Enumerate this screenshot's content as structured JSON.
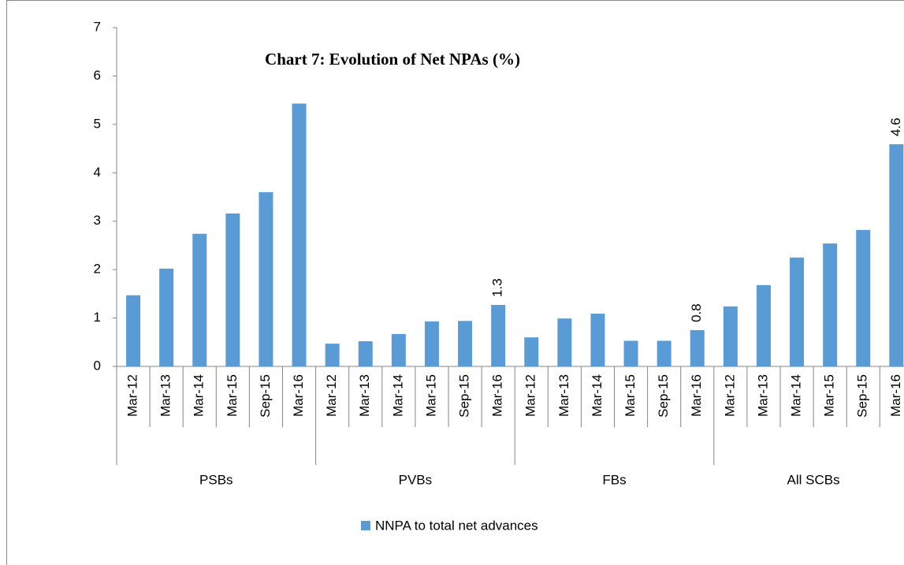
{
  "chart_data": {
    "type": "bar",
    "title": "Chart 7: Evolution of Net NPAs (%)",
    "legend": "NNPA to total net advances",
    "color": "#5b9bd5",
    "ylim": [
      0,
      7
    ],
    "yticks": [
      0,
      1,
      2,
      3,
      4,
      5,
      6,
      7
    ],
    "groups": [
      {
        "label": "PSBs",
        "categories": [
          "Mar-12",
          "Mar-13",
          "Mar-14",
          "Mar-15",
          "Sep-15",
          "Mar-16"
        ],
        "values": [
          1.47,
          2.02,
          2.74,
          3.16,
          3.6,
          5.43
        ],
        "value_labels": [
          null,
          null,
          null,
          null,
          null,
          null
        ]
      },
      {
        "label": "PVBs",
        "categories": [
          "Mar-12",
          "Mar-13",
          "Mar-14",
          "Mar-15",
          "Sep-15",
          "Mar-16"
        ],
        "values": [
          0.47,
          0.52,
          0.67,
          0.93,
          0.94,
          1.27
        ],
        "value_labels": [
          null,
          null,
          null,
          null,
          null,
          "1.3"
        ]
      },
      {
        "label": "FBs",
        "categories": [
          "Mar-12",
          "Mar-13",
          "Mar-14",
          "Mar-15",
          "Sep-15",
          "Mar-16"
        ],
        "values": [
          0.6,
          0.99,
          1.09,
          0.53,
          0.53,
          0.75
        ],
        "value_labels": [
          null,
          null,
          null,
          null,
          null,
          "0.8"
        ]
      },
      {
        "label": "All SCBs",
        "categories": [
          "Mar-12",
          "Mar-13",
          "Mar-14",
          "Mar-15",
          "Sep-15",
          "Mar-16"
        ],
        "values": [
          1.24,
          1.68,
          2.25,
          2.54,
          2.82,
          4.59
        ],
        "value_labels": [
          null,
          null,
          null,
          null,
          null,
          "4.6"
        ]
      }
    ]
  }
}
